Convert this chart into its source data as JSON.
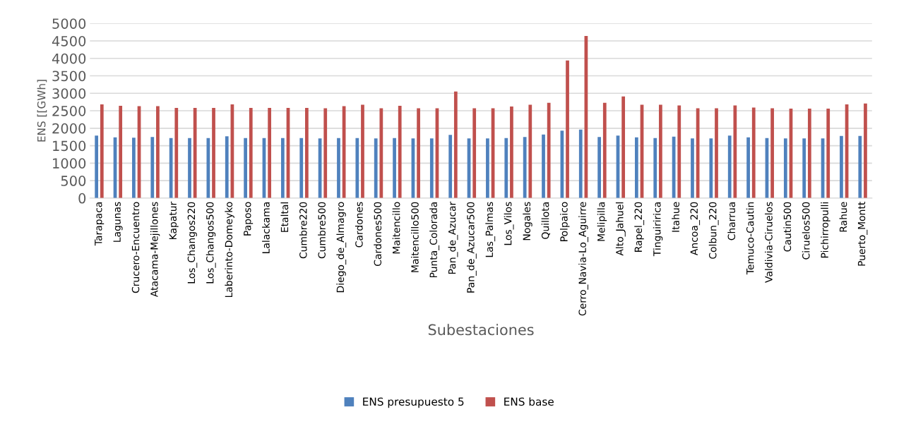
{
  "chart_data": {
    "type": "bar",
    "xlabel": "Subestaciones",
    "ylabel": "ENS [[GWh]",
    "categories": [
      "Tarapaca",
      "Lagunas",
      "Crucero-Encuentro",
      "Atacama-Mejillones",
      "Kapatur",
      "Los_Changos220",
      "Los_Changos500",
      "Laberinto-Domeyko",
      "Paposo",
      "Lalackama",
      "Etaltal",
      "Cumbre220",
      "Cumbre500",
      "Diego_de_Almagro",
      "Cardones",
      "Cardones500",
      "Maitencillo",
      "Maitencillo500",
      "Punta_Colorada",
      "Pan_de_Azucar",
      "Pan_de_Azucar500",
      "Las_Palmas",
      "Los_Vilos",
      "Nogales",
      "Quillota",
      "Polpaico",
      "Cerro_Navia-Lo_Aguirre",
      "Melipilla",
      "Alto_Jahuel",
      "Rapel_220",
      "Tinguiririca",
      "Itahue",
      "Ancoa_220",
      "Colbun_220",
      "Charrua",
      "Temuco-Cautin",
      "Valdivia-Ciruelos",
      "Cautin500",
      "Ciruelos500",
      "Pichirropulli",
      "Rahue",
      "Puerto_Montt"
    ],
    "series": [
      {
        "name": "ENS presupuesto 5",
        "color": "#4f81bd",
        "values": [
          1790,
          1740,
          1730,
          1750,
          1720,
          1720,
          1720,
          1770,
          1720,
          1720,
          1720,
          1720,
          1710,
          1720,
          1720,
          1710,
          1720,
          1710,
          1710,
          1810,
          1710,
          1710,
          1720,
          1750,
          1820,
          1930,
          1960,
          1750,
          1790,
          1740,
          1720,
          1760,
          1710,
          1710,
          1790,
          1740,
          1720,
          1710,
          1710,
          1710,
          1780,
          1780
        ]
      },
      {
        "name": "ENS base",
        "color": "#c0504d",
        "values": [
          2680,
          2640,
          2630,
          2630,
          2580,
          2580,
          2580,
          2680,
          2580,
          2580,
          2580,
          2580,
          2570,
          2630,
          2670,
          2570,
          2640,
          2570,
          2570,
          3050,
          2570,
          2570,
          2620,
          2670,
          2730,
          3940,
          4640,
          2730,
          2910,
          2670,
          2670,
          2650,
          2570,
          2570,
          2650,
          2590,
          2570,
          2560,
          2560,
          2560,
          2680,
          2710
        ]
      }
    ],
    "ylim": [
      0,
      5000
    ],
    "yticks": [
      0,
      500,
      1000,
      1500,
      2000,
      2500,
      3000,
      3500,
      4000,
      4500,
      5000
    ],
    "grid": "y",
    "legend": "bottom"
  }
}
